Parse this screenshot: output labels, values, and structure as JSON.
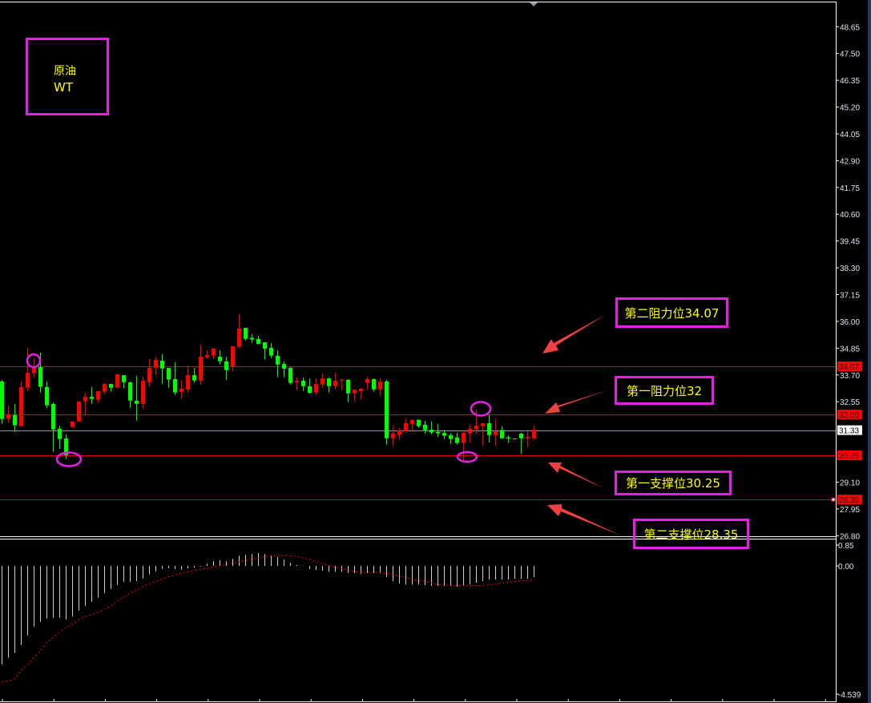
{
  "instrument": {
    "line1": "原油",
    "line2": "WT"
  },
  "annotations": [
    {
      "text": "第二阻力位34.07",
      "level": 34.07
    },
    {
      "text": "第一阻力位32",
      "level": 32.0
    },
    {
      "text": "第一支撑位30.25",
      "level": 30.25
    },
    {
      "text": "第二支撑位28.35",
      "level": 28.35
    }
  ],
  "colors": {
    "up": "#ff0000",
    "down": "#00ff00",
    "annotation_border": "#e81ee8",
    "annotation_text": "#ffff00",
    "arrow": "#f04040",
    "level_line": "#dd0000",
    "current_price_line": "#8a99aa",
    "macd_hist": "#d0d0d0",
    "macd_signal": "#ff0000"
  },
  "chart_data": [
    {
      "type": "candlestick",
      "ylim": [
        26.5,
        49.2
      ],
      "yticks": [
        "48.65",
        "47.50",
        "46.35",
        "45.20",
        "44.05",
        "42.90",
        "41.75",
        "40.60",
        "39.45",
        "38.30",
        "37.15",
        "36.00",
        "34.85",
        "33.70",
        "32.55",
        "29.10",
        "27.95",
        "26.80"
      ],
      "price_tags": [
        {
          "label": "34.07",
          "kind": "level"
        },
        {
          "label": "32.00",
          "kind": "level"
        },
        {
          "label": "31.33",
          "kind": "current"
        },
        {
          "label": "30.25",
          "kind": "level"
        },
        {
          "label": "28.35",
          "kind": "level"
        }
      ],
      "ohlc": [
        [
          33.42,
          33.49,
          31.6,
          31.81
        ],
        [
          31.81,
          32.38,
          31.65,
          31.99
        ],
        [
          31.98,
          32.45,
          31.26,
          31.54
        ],
        [
          31.5,
          33.42,
          31.5,
          33.18
        ],
        [
          33.15,
          34.86,
          33.01,
          33.79
        ],
        [
          33.77,
          34.41,
          33.6,
          34.02
        ],
        [
          34.04,
          34.66,
          32.95,
          33.19
        ],
        [
          33.18,
          33.42,
          32.28,
          32.4
        ],
        [
          32.45,
          32.52,
          30.4,
          31.36
        ],
        [
          31.39,
          31.52,
          30.53,
          30.95
        ],
        [
          30.97,
          31.15,
          30.09,
          30.26
        ],
        [
          31.47,
          31.72,
          31.43,
          31.7
        ],
        [
          31.71,
          32.56,
          31.67,
          32.56
        ],
        [
          32.57,
          32.93,
          32.0,
          32.76
        ],
        [
          32.76,
          33.18,
          32.46,
          32.67
        ],
        [
          32.64,
          33.0,
          32.5,
          33.0
        ],
        [
          32.98,
          33.36,
          32.88,
          33.31
        ],
        [
          33.31,
          33.31,
          32.98,
          33.15
        ],
        [
          33.15,
          33.73,
          33.15,
          33.73
        ],
        [
          33.69,
          33.69,
          33.12,
          33.39
        ],
        [
          33.38,
          33.42,
          32.29,
          32.6
        ],
        [
          32.59,
          33.66,
          31.74,
          32.46
        ],
        [
          32.46,
          33.62,
          32.26,
          33.45
        ],
        [
          33.39,
          34.38,
          33.19,
          34.0
        ],
        [
          34.01,
          34.48,
          33.7,
          34.35
        ],
        [
          34.31,
          34.59,
          33.32,
          33.98
        ],
        [
          34.0,
          34.0,
          33.15,
          33.5
        ],
        [
          33.52,
          34.24,
          32.84,
          32.95
        ],
        [
          32.97,
          33.49,
          32.67,
          33.11
        ],
        [
          33.08,
          34.1,
          32.95,
          33.69
        ],
        [
          33.69,
          34.0,
          33.36,
          33.46
        ],
        [
          33.46,
          35.0,
          33.29,
          34.48
        ],
        [
          34.46,
          34.76,
          34.39,
          34.55
        ],
        [
          34.53,
          34.86,
          34.39,
          34.83
        ],
        [
          34.48,
          34.76,
          34.15,
          34.29
        ],
        [
          34.28,
          34.48,
          33.5,
          33.91
        ],
        [
          34.05,
          34.93,
          33.84,
          34.93
        ],
        [
          34.91,
          36.31,
          34.84,
          35.69
        ],
        [
          35.72,
          35.72,
          35.18,
          35.25
        ],
        [
          35.29,
          35.45,
          35.08,
          35.22
        ],
        [
          35.24,
          35.38,
          35.03,
          35.03
        ],
        [
          35.1,
          35.1,
          34.36,
          34.83
        ],
        [
          34.86,
          35.07,
          34.43,
          34.53
        ],
        [
          34.52,
          34.76,
          33.6,
          34.15
        ],
        [
          34.17,
          34.28,
          33.6,
          33.97
        ],
        [
          34.0,
          34.04,
          33.29,
          33.36
        ],
        [
          33.39,
          33.59,
          33.04,
          33.45
        ],
        [
          33.45,
          33.59,
          33.01,
          33.22
        ],
        [
          33.21,
          33.55,
          32.9,
          32.93
        ],
        [
          32.95,
          33.55,
          32.84,
          33.31
        ],
        [
          33.29,
          33.76,
          33.15,
          33.55
        ],
        [
          33.55,
          33.59,
          32.95,
          33.22
        ],
        [
          33.22,
          33.79,
          33.08,
          33.45
        ],
        [
          33.46,
          33.52,
          33.05,
          33.5
        ],
        [
          33.49,
          33.52,
          32.53,
          32.91
        ],
        [
          32.91,
          33.07,
          32.57,
          33.07
        ],
        [
          33.01,
          33.14,
          32.64,
          33.11
        ],
        [
          33.36,
          33.62,
          33.08,
          33.52
        ],
        [
          33.52,
          33.55,
          32.98,
          33.08
        ],
        [
          33.08,
          33.55,
          32.81,
          33.42
        ],
        [
          33.42,
          33.49,
          30.71,
          30.98
        ],
        [
          30.98,
          31.52,
          30.64,
          31.18
        ],
        [
          31.12,
          31.42,
          30.92,
          31.32
        ],
        [
          31.29,
          31.83,
          31.22,
          31.63
        ],
        [
          31.59,
          31.8,
          31.26,
          31.77
        ],
        [
          31.77,
          31.8,
          31.43,
          31.5
        ],
        [
          31.56,
          31.73,
          31.19,
          31.33
        ],
        [
          31.35,
          31.7,
          31.16,
          31.23
        ],
        [
          31.25,
          31.59,
          31.05,
          31.19
        ],
        [
          31.21,
          31.32,
          30.95,
          31.09
        ],
        [
          31.11,
          31.21,
          30.74,
          30.95
        ],
        [
          31.02,
          31.21,
          30.71,
          30.78
        ],
        [
          30.78,
          31.33,
          30.04,
          31.21
        ],
        [
          31.19,
          31.56,
          30.78,
          31.39
        ],
        [
          31.36,
          32.22,
          31.16,
          31.52
        ],
        [
          31.5,
          31.63,
          30.67,
          31.63
        ],
        [
          31.63,
          31.97,
          30.81,
          31.12
        ],
        [
          31.12,
          31.8,
          30.67,
          31.28
        ],
        [
          31.33,
          31.49,
          30.98,
          30.98
        ],
        [
          31.02,
          31.11,
          30.78,
          30.97
        ],
        [
          30.97,
          30.97,
          30.95,
          30.95
        ],
        [
          31.18,
          31.21,
          30.3,
          30.98
        ],
        [
          30.98,
          31.28,
          30.61,
          31.04
        ],
        [
          30.98,
          31.52,
          30.92,
          31.35
        ]
      ],
      "horizontal_lines": [
        34.07,
        32.0,
        31.33,
        30.25,
        28.35
      ]
    },
    {
      "type": "bar",
      "ylim": [
        -4.539,
        0.85
      ],
      "yticks": [
        "0.85",
        "0.00",
        "-4.539"
      ],
      "histogram": [
        -3.46,
        -3.23,
        -3.06,
        -2.78,
        -2.44,
        -2.13,
        -1.96,
        -1.85,
        -1.82,
        -1.82,
        -1.88,
        -1.77,
        -1.57,
        -1.4,
        -1.26,
        -1.12,
        -0.95,
        -0.81,
        -0.67,
        -0.56,
        -0.56,
        -0.53,
        -0.44,
        -0.3,
        -0.19,
        -0.1,
        -0.08,
        -0.11,
        -0.13,
        -0.08,
        -0.05,
        -0.02,
        0.08,
        0.17,
        0.2,
        0.17,
        0.25,
        0.36,
        0.39,
        0.42,
        0.45,
        0.42,
        0.36,
        0.31,
        0.23,
        0.11,
        0.03,
        0.01,
        -0.11,
        -0.14,
        -0.17,
        -0.2,
        -0.2,
        -0.2,
        -0.25,
        -0.25,
        -0.28,
        -0.25,
        -0.25,
        -0.25,
        -0.39,
        -0.54,
        -0.62,
        -0.65,
        -0.65,
        -0.65,
        -0.68,
        -0.7,
        -0.7,
        -0.7,
        -0.7,
        -0.73,
        -0.7,
        -0.65,
        -0.59,
        -0.54,
        -0.48,
        -0.48,
        -0.48,
        -0.48,
        -0.45,
        -0.45,
        -0.45,
        -0.39
      ],
      "signal": [
        -4.08,
        -4.04,
        -3.96,
        -3.68,
        -3.47,
        -3.21,
        -2.98,
        -2.69,
        -2.51,
        -2.32,
        -2.16,
        -2.04,
        -1.9,
        -1.78,
        -1.71,
        -1.63,
        -1.52,
        -1.41,
        -1.24,
        -1.1,
        -0.96,
        -0.85,
        -0.72,
        -0.63,
        -0.54,
        -0.46,
        -0.38,
        -0.32,
        -0.25,
        -0.21,
        -0.16,
        -0.12,
        -0.08,
        -0.04,
        0.0,
        0.05,
        0.1,
        0.15,
        0.19,
        0.23,
        0.28,
        0.33,
        0.36,
        0.36,
        0.38,
        0.36,
        0.33,
        0.28,
        0.23,
        0.15,
        0.08,
        0.02,
        -0.04,
        -0.09,
        -0.15,
        -0.19,
        -0.22,
        -0.23,
        -0.23,
        -0.23,
        -0.27,
        -0.3,
        -0.36,
        -0.41,
        -0.47,
        -0.51,
        -0.54,
        -0.6,
        -0.65,
        -0.68,
        -0.69,
        -0.69,
        -0.69,
        -0.69,
        -0.69,
        -0.68,
        -0.66,
        -0.63,
        -0.61,
        -0.58,
        -0.55,
        -0.53,
        -0.51,
        -0.49
      ]
    }
  ]
}
